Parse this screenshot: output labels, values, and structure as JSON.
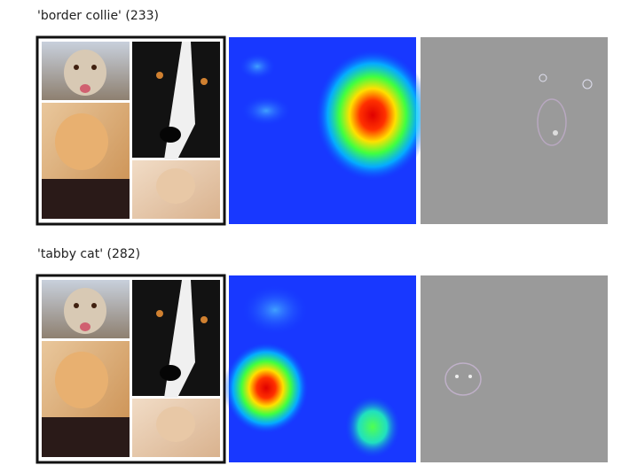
{
  "rows": [
    {
      "label": "'border collie' (233)"
    },
    {
      "label": "'tabby cat' (282)"
    }
  ]
}
